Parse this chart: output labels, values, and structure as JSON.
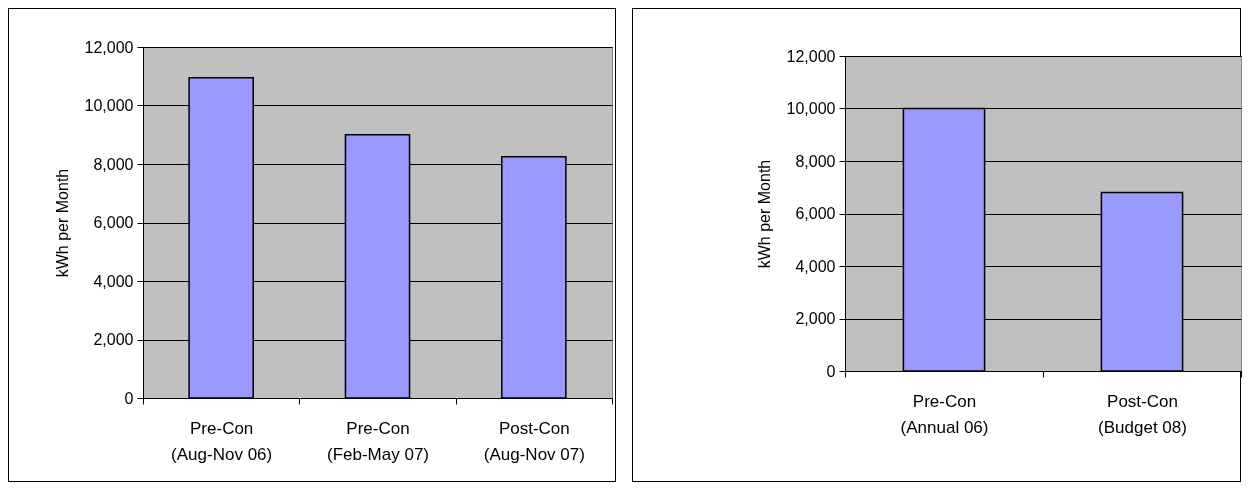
{
  "chart_data": [
    {
      "type": "bar",
      "categories": [
        "Pre-Con\n(Aug-Nov 06)",
        "Pre-Con\n(Feb-May 07)",
        "Post-Con\n(Aug-Nov 07)"
      ],
      "values": [
        10950,
        9000,
        8250
      ],
      "color": "#9999ff",
      "ylabel": "kWh per Month",
      "ylim": [
        0,
        12000
      ],
      "yticks": [
        0,
        {
          "value": 2000,
          "label": "2,000"
        },
        {
          "value": 4000,
          "label": "4,000"
        },
        {
          "value": 6000,
          "label": "6,000"
        },
        {
          "value": 8000,
          "label": "8,000"
        },
        {
          "value": 10000,
          "label": "10,000"
        },
        {
          "value": 12000,
          "label": "12,000"
        }
      ],
      "grid": "y"
    },
    {
      "type": "bar",
      "categories": [
        "Pre-Con\n(Annual 06)",
        "Post-Con\n(Budget 08)"
      ],
      "values": [
        10000,
        6800
      ],
      "color": "#9999ff",
      "ylabel": "kWh per Month",
      "ylim": [
        0,
        12000
      ],
      "yticks": [
        0,
        {
          "value": 2000,
          "label": "2,000"
        },
        {
          "value": 4000,
          "label": "4,000"
        },
        {
          "value": 6000,
          "label": "6,000"
        },
        {
          "value": 8000,
          "label": "8,000"
        },
        {
          "value": 10000,
          "label": "10,000"
        },
        {
          "value": 12000,
          "label": "12,000"
        }
      ],
      "grid": "y"
    }
  ]
}
